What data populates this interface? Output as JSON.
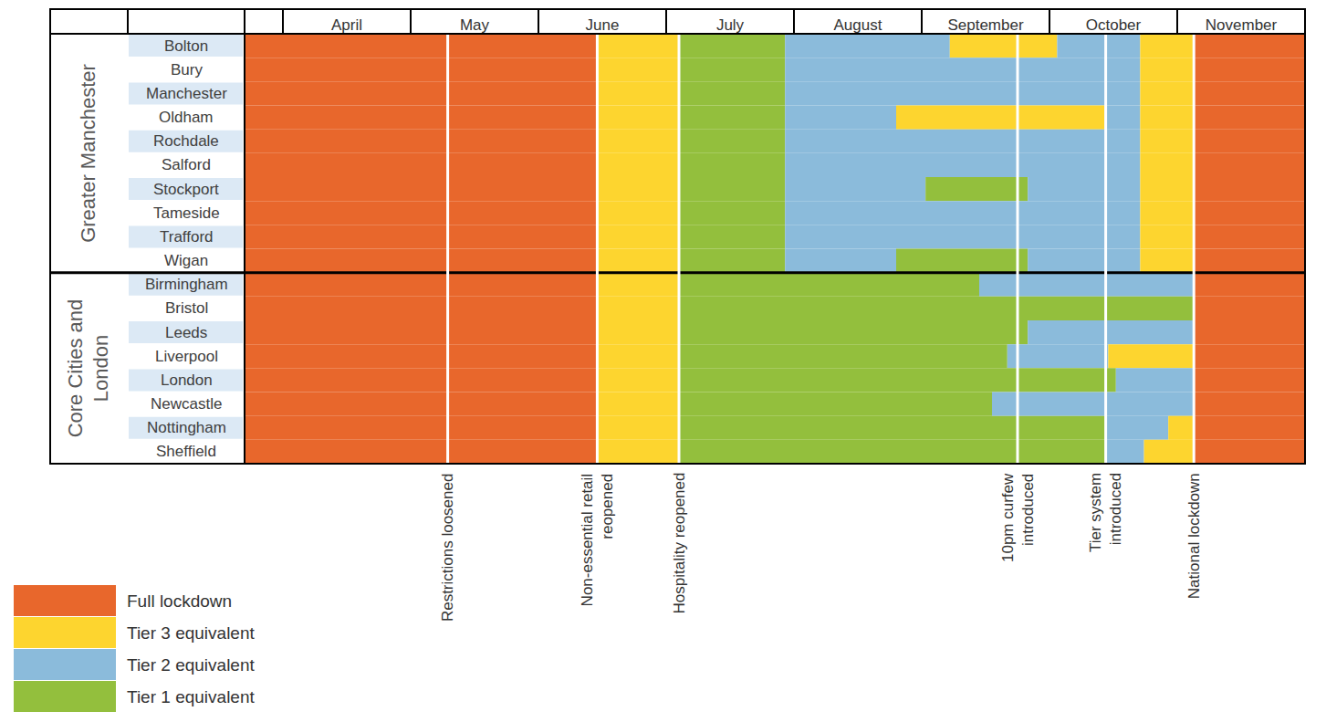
{
  "chart_data": {
    "type": "timeline",
    "xlim": [
      -0.3,
      8
    ],
    "xticks": [
      {
        "value": 0.5,
        "label": "April"
      },
      {
        "value": 1.5,
        "label": "May"
      },
      {
        "value": 2.5,
        "label": "June"
      },
      {
        "value": 3.5,
        "label": "July"
      },
      {
        "value": 4.5,
        "label": "August"
      },
      {
        "value": 5.5,
        "label": "September"
      },
      {
        "value": 6.5,
        "label": "October"
      },
      {
        "value": 7.5,
        "label": "November"
      }
    ],
    "series": [
      {
        "name": "Full lockdown",
        "color": "#e8672c"
      },
      {
        "name": "Tier 3 equivalent",
        "color": "#fdd52f"
      },
      {
        "name": "Tier 2 equivalent",
        "color": "#8bbbdb"
      },
      {
        "name": "Tier 1 equivalent",
        "color": "#93bf3d"
      }
    ],
    "events": [
      {
        "x": 1.29,
        "label": "Restrictions loosened"
      },
      {
        "x": 2.46,
        "label": "Non-essential retail\nreopened"
      },
      {
        "x": 3.1,
        "label": "Hospitality reopened"
      },
      {
        "x": 5.75,
        "label": "10pm curfew\nintroduced"
      },
      {
        "x": 6.44,
        "label": "Tier system\nintroduced"
      },
      {
        "x": 7.13,
        "label": "National lockdown"
      }
    ],
    "groups": [
      {
        "name": "Greater Manchester",
        "rows": [
          {
            "name": "Bolton",
            "segments": [
              {
                "start": -0.3,
                "end": 2.46,
                "level": "Full lockdown"
              },
              {
                "start": 2.46,
                "end": 3.1,
                "level": "Tier 3 equivalent"
              },
              {
                "start": 3.1,
                "end": 3.93,
                "level": "Tier 1 equivalent"
              },
              {
                "start": 3.93,
                "end": 5.22,
                "level": "Tier 2 equivalent"
              },
              {
                "start": 5.22,
                "end": 6.06,
                "level": "Tier 3 equivalent"
              },
              {
                "start": 6.06,
                "end": 6.71,
                "level": "Tier 2 equivalent"
              },
              {
                "start": 6.71,
                "end": 7.13,
                "level": "Tier 3 equivalent"
              },
              {
                "start": 7.13,
                "end": 8,
                "level": "Full lockdown"
              }
            ]
          },
          {
            "name": "Bury",
            "segments": [
              {
                "start": -0.3,
                "end": 2.46,
                "level": "Full lockdown"
              },
              {
                "start": 2.46,
                "end": 3.1,
                "level": "Tier 3 equivalent"
              },
              {
                "start": 3.1,
                "end": 3.93,
                "level": "Tier 1 equivalent"
              },
              {
                "start": 3.93,
                "end": 6.71,
                "level": "Tier 2 equivalent"
              },
              {
                "start": 6.71,
                "end": 7.13,
                "level": "Tier 3 equivalent"
              },
              {
                "start": 7.13,
                "end": 8,
                "level": "Full lockdown"
              }
            ]
          },
          {
            "name": "Manchester",
            "segments": [
              {
                "start": -0.3,
                "end": 2.46,
                "level": "Full lockdown"
              },
              {
                "start": 2.46,
                "end": 3.1,
                "level": "Tier 3 equivalent"
              },
              {
                "start": 3.1,
                "end": 3.93,
                "level": "Tier 1 equivalent"
              },
              {
                "start": 3.93,
                "end": 6.71,
                "level": "Tier 2 equivalent"
              },
              {
                "start": 6.71,
                "end": 7.13,
                "level": "Tier 3 equivalent"
              },
              {
                "start": 7.13,
                "end": 8,
                "level": "Full lockdown"
              }
            ]
          },
          {
            "name": "Oldham",
            "segments": [
              {
                "start": -0.3,
                "end": 2.46,
                "level": "Full lockdown"
              },
              {
                "start": 2.46,
                "end": 3.1,
                "level": "Tier 3 equivalent"
              },
              {
                "start": 3.1,
                "end": 3.93,
                "level": "Tier 1 equivalent"
              },
              {
                "start": 3.93,
                "end": 4.8,
                "level": "Tier 2 equivalent"
              },
              {
                "start": 4.8,
                "end": 6.43,
                "level": "Tier 3 equivalent"
              },
              {
                "start": 6.43,
                "end": 6.71,
                "level": "Tier 2 equivalent"
              },
              {
                "start": 6.71,
                "end": 7.13,
                "level": "Tier 3 equivalent"
              },
              {
                "start": 7.13,
                "end": 8,
                "level": "Full lockdown"
              }
            ]
          },
          {
            "name": "Rochdale",
            "segments": [
              {
                "start": -0.3,
                "end": 2.46,
                "level": "Full lockdown"
              },
              {
                "start": 2.46,
                "end": 3.1,
                "level": "Tier 3 equivalent"
              },
              {
                "start": 3.1,
                "end": 3.93,
                "level": "Tier 1 equivalent"
              },
              {
                "start": 3.93,
                "end": 6.71,
                "level": "Tier 2 equivalent"
              },
              {
                "start": 6.71,
                "end": 7.13,
                "level": "Tier 3 equivalent"
              },
              {
                "start": 7.13,
                "end": 8,
                "level": "Full lockdown"
              }
            ]
          },
          {
            "name": "Salford",
            "segments": [
              {
                "start": -0.3,
                "end": 2.46,
                "level": "Full lockdown"
              },
              {
                "start": 2.46,
                "end": 3.1,
                "level": "Tier 3 equivalent"
              },
              {
                "start": 3.1,
                "end": 3.93,
                "level": "Tier 1 equivalent"
              },
              {
                "start": 3.93,
                "end": 6.71,
                "level": "Tier 2 equivalent"
              },
              {
                "start": 6.71,
                "end": 7.13,
                "level": "Tier 3 equivalent"
              },
              {
                "start": 7.13,
                "end": 8,
                "level": "Full lockdown"
              }
            ]
          },
          {
            "name": "Stockport",
            "segments": [
              {
                "start": -0.3,
                "end": 2.46,
                "level": "Full lockdown"
              },
              {
                "start": 2.46,
                "end": 3.1,
                "level": "Tier 3 equivalent"
              },
              {
                "start": 3.1,
                "end": 3.93,
                "level": "Tier 1 equivalent"
              },
              {
                "start": 3.93,
                "end": 5.03,
                "level": "Tier 2 equivalent"
              },
              {
                "start": 5.03,
                "end": 5.83,
                "level": "Tier 1 equivalent"
              },
              {
                "start": 5.83,
                "end": 6.71,
                "level": "Tier 2 equivalent"
              },
              {
                "start": 6.71,
                "end": 7.13,
                "level": "Tier 3 equivalent"
              },
              {
                "start": 7.13,
                "end": 8,
                "level": "Full lockdown"
              }
            ]
          },
          {
            "name": "Tameside",
            "segments": [
              {
                "start": -0.3,
                "end": 2.46,
                "level": "Full lockdown"
              },
              {
                "start": 2.46,
                "end": 3.1,
                "level": "Tier 3 equivalent"
              },
              {
                "start": 3.1,
                "end": 3.93,
                "level": "Tier 1 equivalent"
              },
              {
                "start": 3.93,
                "end": 6.71,
                "level": "Tier 2 equivalent"
              },
              {
                "start": 6.71,
                "end": 7.13,
                "level": "Tier 3 equivalent"
              },
              {
                "start": 7.13,
                "end": 8,
                "level": "Full lockdown"
              }
            ]
          },
          {
            "name": "Trafford",
            "segments": [
              {
                "start": -0.3,
                "end": 2.46,
                "level": "Full lockdown"
              },
              {
                "start": 2.46,
                "end": 3.1,
                "level": "Tier 3 equivalent"
              },
              {
                "start": 3.1,
                "end": 3.93,
                "level": "Tier 1 equivalent"
              },
              {
                "start": 3.93,
                "end": 6.71,
                "level": "Tier 2 equivalent"
              },
              {
                "start": 6.71,
                "end": 7.13,
                "level": "Tier 3 equivalent"
              },
              {
                "start": 7.13,
                "end": 8,
                "level": "Full lockdown"
              }
            ]
          },
          {
            "name": "Wigan",
            "segments": [
              {
                "start": -0.3,
                "end": 2.46,
                "level": "Full lockdown"
              },
              {
                "start": 2.46,
                "end": 3.1,
                "level": "Tier 3 equivalent"
              },
              {
                "start": 3.1,
                "end": 3.93,
                "level": "Tier 1 equivalent"
              },
              {
                "start": 3.93,
                "end": 4.8,
                "level": "Tier 2 equivalent"
              },
              {
                "start": 4.8,
                "end": 5.83,
                "level": "Tier 1 equivalent"
              },
              {
                "start": 5.83,
                "end": 6.71,
                "level": "Tier 2 equivalent"
              },
              {
                "start": 6.71,
                "end": 7.13,
                "level": "Tier 3 equivalent"
              },
              {
                "start": 7.13,
                "end": 8,
                "level": "Full lockdown"
              }
            ]
          }
        ]
      },
      {
        "name": "Core Cities and\nLondon",
        "rows": [
          {
            "name": "Birmingham",
            "segments": [
              {
                "start": -0.3,
                "end": 2.46,
                "level": "Full lockdown"
              },
              {
                "start": 2.46,
                "end": 3.1,
                "level": "Tier 3 equivalent"
              },
              {
                "start": 3.1,
                "end": 5.45,
                "level": "Tier 1 equivalent"
              },
              {
                "start": 5.45,
                "end": 7.13,
                "level": "Tier 2 equivalent"
              },
              {
                "start": 7.13,
                "end": 8,
                "level": "Full lockdown"
              }
            ]
          },
          {
            "name": "Bristol",
            "segments": [
              {
                "start": -0.3,
                "end": 2.46,
                "level": "Full lockdown"
              },
              {
                "start": 2.46,
                "end": 3.1,
                "level": "Tier 3 equivalent"
              },
              {
                "start": 3.1,
                "end": 7.13,
                "level": "Tier 1 equivalent"
              },
              {
                "start": 7.13,
                "end": 8,
                "level": "Full lockdown"
              }
            ]
          },
          {
            "name": "Leeds",
            "segments": [
              {
                "start": -0.3,
                "end": 2.46,
                "level": "Full lockdown"
              },
              {
                "start": 2.46,
                "end": 3.1,
                "level": "Tier 3 equivalent"
              },
              {
                "start": 3.1,
                "end": 5.83,
                "level": "Tier 1 equivalent"
              },
              {
                "start": 5.83,
                "end": 7.13,
                "level": "Tier 2 equivalent"
              },
              {
                "start": 7.13,
                "end": 8,
                "level": "Full lockdown"
              }
            ]
          },
          {
            "name": "Liverpool",
            "segments": [
              {
                "start": -0.3,
                "end": 2.46,
                "level": "Full lockdown"
              },
              {
                "start": 2.46,
                "end": 3.1,
                "level": "Tier 3 equivalent"
              },
              {
                "start": 3.1,
                "end": 5.67,
                "level": "Tier 1 equivalent"
              },
              {
                "start": 5.67,
                "end": 6.46,
                "level": "Tier 2 equivalent"
              },
              {
                "start": 6.46,
                "end": 7.13,
                "level": "Tier 3 equivalent"
              },
              {
                "start": 7.13,
                "end": 8,
                "level": "Full lockdown"
              }
            ]
          },
          {
            "name": "London",
            "segments": [
              {
                "start": -0.3,
                "end": 2.46,
                "level": "Full lockdown"
              },
              {
                "start": 2.46,
                "end": 3.1,
                "level": "Tier 3 equivalent"
              },
              {
                "start": 3.1,
                "end": 6.52,
                "level": "Tier 1 equivalent"
              },
              {
                "start": 6.52,
                "end": 7.13,
                "level": "Tier 2 equivalent"
              },
              {
                "start": 7.13,
                "end": 8,
                "level": "Full lockdown"
              }
            ]
          },
          {
            "name": "Newcastle",
            "segments": [
              {
                "start": -0.3,
                "end": 2.46,
                "level": "Full lockdown"
              },
              {
                "start": 2.46,
                "end": 3.1,
                "level": "Tier 3 equivalent"
              },
              {
                "start": 3.1,
                "end": 5.55,
                "level": "Tier 1 equivalent"
              },
              {
                "start": 5.55,
                "end": 7.13,
                "level": "Tier 2 equivalent"
              },
              {
                "start": 7.13,
                "end": 8,
                "level": "Full lockdown"
              }
            ]
          },
          {
            "name": "Nottingham",
            "segments": [
              {
                "start": -0.3,
                "end": 2.46,
                "level": "Full lockdown"
              },
              {
                "start": 2.46,
                "end": 3.1,
                "level": "Tier 3 equivalent"
              },
              {
                "start": 3.1,
                "end": 6.44,
                "level": "Tier 1 equivalent"
              },
              {
                "start": 6.44,
                "end": 6.93,
                "level": "Tier 2 equivalent"
              },
              {
                "start": 6.93,
                "end": 7.13,
                "level": "Tier 3 equivalent"
              },
              {
                "start": 7.13,
                "end": 8,
                "level": "Full lockdown"
              }
            ]
          },
          {
            "name": "Sheffield",
            "segments": [
              {
                "start": -0.3,
                "end": 2.46,
                "level": "Full lockdown"
              },
              {
                "start": 2.46,
                "end": 3.1,
                "level": "Tier 3 equivalent"
              },
              {
                "start": 3.1,
                "end": 6.44,
                "level": "Tier 1 equivalent"
              },
              {
                "start": 6.44,
                "end": 6.74,
                "level": "Tier 2 equivalent"
              },
              {
                "start": 6.74,
                "end": 7.13,
                "level": "Tier 3 equivalent"
              },
              {
                "start": 7.13,
                "end": 8,
                "level": "Full lockdown"
              }
            ]
          }
        ]
      }
    ]
  }
}
